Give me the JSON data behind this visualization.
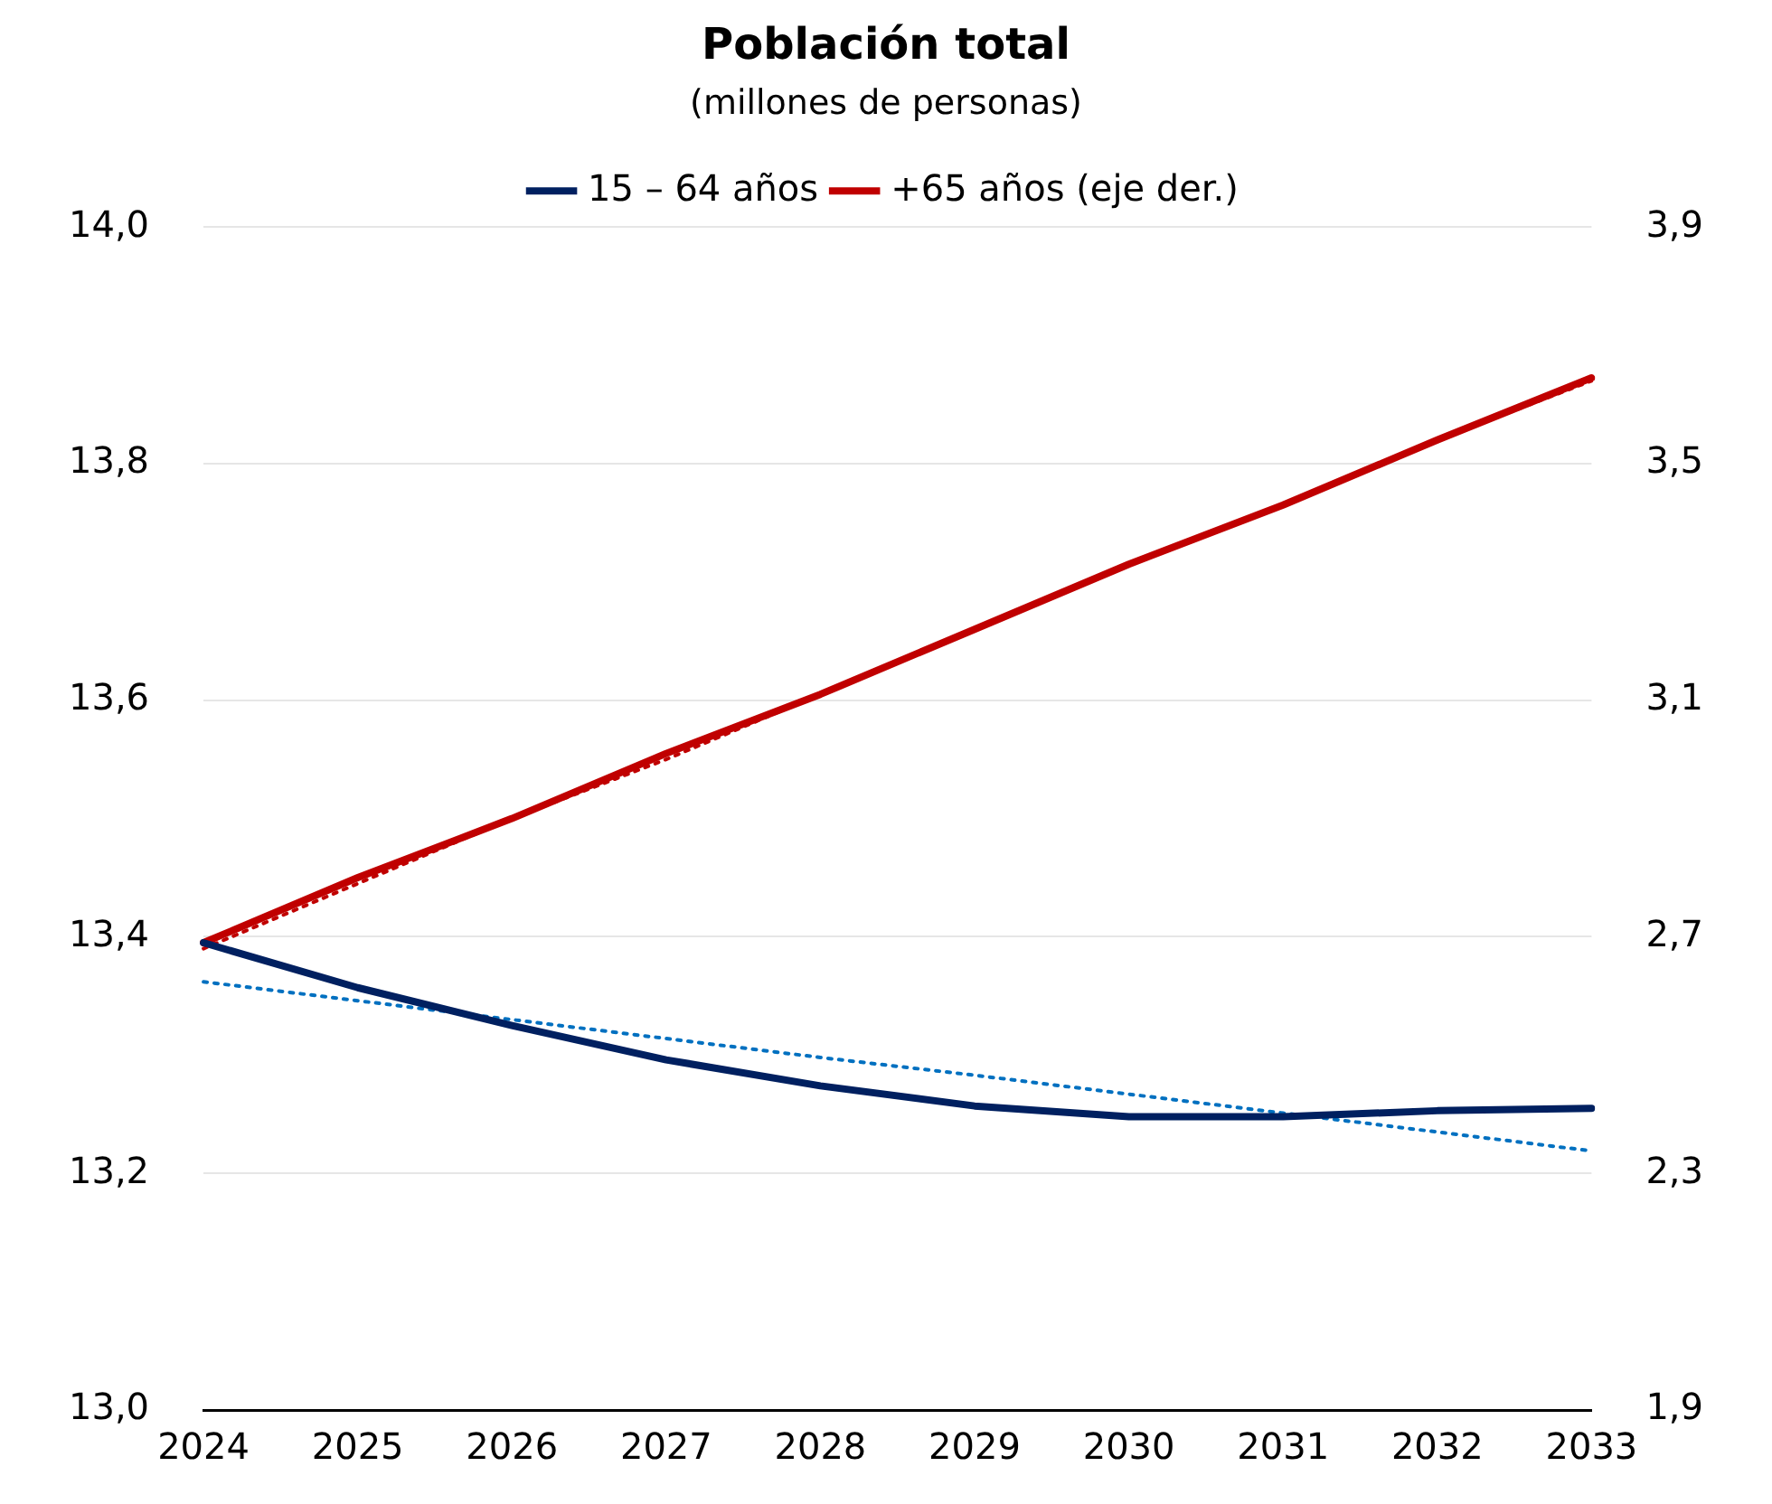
{
  "chart_data": {
    "type": "line",
    "title": "Población total",
    "subtitle": "(millones de personas)",
    "categories": [
      "2024",
      "2025",
      "2026",
      "2027",
      "2028",
      "2029",
      "2030",
      "2031",
      "2032",
      "2033"
    ],
    "series": [
      {
        "name": "15 – 64 años",
        "color": "#002060",
        "values": [
          13.395,
          13.357,
          13.325,
          13.296,
          13.274,
          13.257,
          13.248,
          13.248,
          13.253,
          13.255
        ]
      },
      {
        "name": "+65 años (eje der.)",
        "color": "#c00000",
        "axis": "y2",
        "values": [
          2.69,
          2.8,
          2.9,
          3.01,
          3.11,
          3.22,
          3.33,
          3.43,
          3.54,
          3.645
        ]
      },
      {
        "type": "line",
        "color": "#0070c0",
        "line_style": "dotted",
        "values": [
          13.362,
          13.346,
          13.33,
          13.314,
          13.298,
          13.283,
          13.267,
          13.251,
          13.235,
          13.219
        ]
      },
      {
        "type": "line",
        "color": "#c00000",
        "axis": "y2",
        "line_style": "dotted",
        "values": [
          2.68,
          2.79,
          2.9,
          3.0,
          3.11,
          3.22,
          3.33,
          3.43,
          3.54,
          3.64
        ]
      }
    ],
    "ylim": [
      13.0,
      14.0
    ],
    "yticks": [
      {
        "value": 13.0,
        "label": "13,0"
      },
      {
        "value": 13.2,
        "label": "13,2"
      },
      {
        "value": 13.4,
        "label": "13,4"
      },
      {
        "value": 13.6,
        "label": "13,6"
      },
      {
        "value": 13.8,
        "label": "13,8"
      },
      {
        "value": 14.0,
        "label": "14,0"
      }
    ],
    "y2lim": [
      1.9,
      3.9
    ],
    "y2ticks": [
      {
        "value": 1.9,
        "label": "1,9"
      },
      {
        "value": 2.3,
        "label": "2,3"
      },
      {
        "value": 2.7,
        "label": "2,7"
      },
      {
        "value": 3.1,
        "label": "3,1"
      },
      {
        "value": 3.5,
        "label": "3,5"
      },
      {
        "value": 3.9,
        "label": "3,9"
      }
    ],
    "grid": "y",
    "legend": "top",
    "marker": "none",
    "line_style": "solid"
  }
}
